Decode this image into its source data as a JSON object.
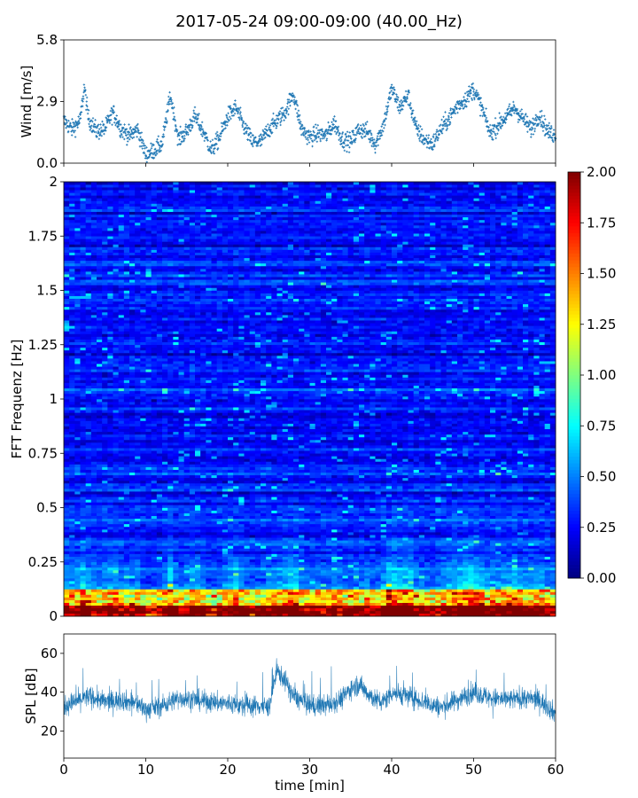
{
  "chart_data": [
    {
      "id": "wind",
      "type": "scatter",
      "title": "2017-05-24 09:00-09:00 (40.00_Hz)",
      "ylabel": "Wind [m/s]",
      "xlim": [
        0,
        60
      ],
      "ylim": [
        0,
        5.8
      ],
      "yticks": [
        0.0,
        2.9,
        5.8
      ],
      "ytick_labels": [
        "0.0",
        "2.9",
        "5.8"
      ],
      "marker_color": "#1f77b4",
      "envelope": {
        "x": [
          0,
          1,
          2,
          2.5,
          3,
          4,
          5,
          6,
          7,
          8,
          9,
          10,
          11,
          12,
          13,
          14,
          15,
          16,
          17,
          18,
          19,
          20,
          21,
          22,
          23,
          24,
          25,
          26,
          27,
          28,
          29,
          30,
          31,
          32,
          33,
          34,
          35,
          36,
          37,
          38,
          39,
          40,
          41,
          42,
          43,
          44,
          45,
          46,
          47,
          48,
          49,
          50,
          51,
          52,
          53,
          54,
          55,
          56,
          57,
          58,
          59,
          60
        ],
        "y": [
          2.0,
          1.6,
          2.0,
          3.6,
          2.1,
          1.5,
          1.6,
          2.4,
          1.6,
          1.3,
          1.6,
          0.4,
          0.6,
          0.9,
          3.2,
          1.1,
          1.5,
          2.2,
          1.5,
          0.6,
          1.2,
          2.2,
          2.6,
          1.7,
          1.0,
          1.0,
          1.6,
          2.0,
          2.4,
          3.3,
          1.6,
          1.2,
          1.4,
          1.3,
          1.9,
          1.1,
          1.0,
          1.6,
          1.5,
          0.9,
          1.8,
          3.5,
          2.6,
          3.2,
          1.6,
          1.1,
          0.9,
          1.6,
          2.1,
          2.7,
          3.0,
          3.5,
          2.6,
          1.4,
          1.8,
          2.2,
          2.6,
          2.1,
          1.6,
          2.3,
          1.5,
          1.3
        ]
      }
    },
    {
      "id": "spectrogram",
      "type": "heatmap",
      "ylabel": "FFT Frequenz [Hz]",
      "xlim": [
        0,
        60
      ],
      "ylim": [
        0,
        2
      ],
      "yticks": [
        0,
        0.25,
        0.5,
        0.75,
        1,
        1.25,
        1.5,
        1.75,
        2
      ],
      "ytick_labels": [
        "0",
        "0.25",
        "0.5",
        "0.75",
        "1",
        "1.25",
        "1.5",
        "1.75",
        "2"
      ],
      "colormap": "jet",
      "colorbar": {
        "range": [
          0.0,
          2.0
        ],
        "ticks": [
          0.0,
          0.25,
          0.5,
          0.75,
          1.0,
          1.25,
          1.5,
          1.75,
          2.0
        ],
        "tick_labels": [
          "0.00",
          "0.25",
          "0.50",
          "0.75",
          "1.00",
          "1.25",
          "1.50",
          "1.75",
          "2.00"
        ]
      }
    },
    {
      "id": "spl",
      "type": "line",
      "ylabel": "SPL [dB]",
      "xlabel": "time [min]",
      "xlim": [
        0,
        60
      ],
      "ylim": [
        6,
        70
      ],
      "yticks": [
        20,
        40,
        60
      ],
      "ytick_labels": [
        "20",
        "40",
        "60"
      ],
      "xticks": [
        0,
        10,
        20,
        30,
        40,
        50,
        60
      ],
      "xtick_labels": [
        "0",
        "10",
        "20",
        "30",
        "40",
        "50",
        "60"
      ],
      "line_color": "#1f77b4",
      "envelope": {
        "x": [
          0,
          2,
          3,
          5,
          7,
          9,
          10,
          12,
          14,
          16,
          18,
          20,
          22,
          24,
          25,
          26,
          27,
          28,
          30,
          32,
          34,
          35,
          36,
          38,
          39,
          40,
          42,
          44,
          46,
          48,
          50,
          52,
          54,
          56,
          58,
          60
        ],
        "y": [
          33,
          36,
          38,
          35,
          36,
          34,
          31,
          33,
          37,
          36,
          35,
          34,
          33,
          33,
          32,
          51,
          46,
          38,
          33,
          33,
          37,
          42,
          44,
          36,
          35,
          40,
          38,
          35,
          32,
          36,
          40,
          37,
          36,
          37,
          36,
          29
        ]
      }
    }
  ]
}
